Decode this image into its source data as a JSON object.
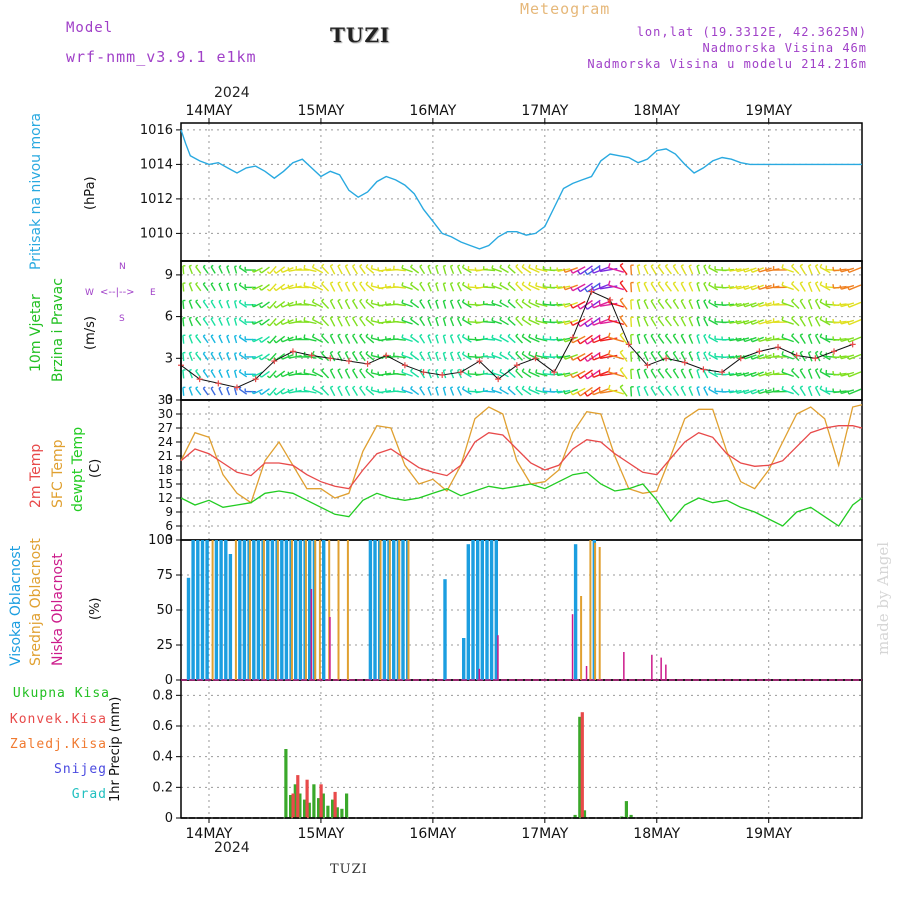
{
  "header": {
    "model_label": "Model",
    "model_name": "wrf-nmm_v3.9.1  e1km",
    "station": "TUZI",
    "title": "Meteogram",
    "lonlat": "lon,lat (19.3312E, 42.3625N)",
    "altitude": "Nadmorska Visina 46m",
    "model_altitude": "Nadmorska Visina u modelu 214.216m",
    "year_top": "2024",
    "year_bottom": "2024",
    "footer_station": "TUZI",
    "watermark": "made by Angel"
  },
  "colors": {
    "pressure": "#29a9e0",
    "wind_label": "#22c022",
    "temp2m": "#e84a4a",
    "sfc": "#e0a030",
    "dewpt": "#22cc22",
    "cloud_high": "#1b9ee0",
    "cloud_mid": "#e0a030",
    "cloud_low": "#cc1a8a",
    "precip_total": "#3aa82a",
    "precip_conv": "#e84a4a",
    "precip_frz": "#f07a30",
    "snow": "#4a4ae0",
    "graupel": "#22c0c0",
    "title": "#e6b87a",
    "purple": "#a040c8"
  },
  "days": [
    "14MAY",
    "15MAY",
    "16MAY",
    "17MAY",
    "18MAY",
    "19MAY"
  ],
  "panels": {
    "pressure": {
      "label": "Pritisak na nivou mora",
      "unit": "(hPa)",
      "ticks": [
        "1016",
        "1014",
        "1012",
        "1010"
      ]
    },
    "wind": {
      "label1": "10m Vjetar",
      "label2": "Brzina i Pravac",
      "unit": "(m/s)",
      "ticks": [
        "9",
        "6",
        "3",
        "0"
      ],
      "compass": {
        "n": "N",
        "s": "S",
        "e": "E",
        "w": "W"
      }
    },
    "temp": {
      "label_2m": "2m Temp",
      "label_sfc": "SFC Temp",
      "label_dew": "dewpt Temp",
      "unit": "(C)",
      "ticks": [
        "33",
        "30",
        "27",
        "24",
        "21",
        "18",
        "15",
        "12",
        "9",
        "6",
        "3"
      ]
    },
    "cloud": {
      "label_high": "Visoka Oblacnost",
      "label_mid": "Srednja Oblacnost",
      "label_low": "Niska Oblacnost",
      "unit": "(%)",
      "ticks": [
        "100",
        "75",
        "50",
        "25",
        "0"
      ]
    },
    "precip": {
      "unit_label": "1hr Precip (mm)",
      "ticks": [
        "0.8",
        "0.6",
        "0.4",
        "0.2",
        "0"
      ],
      "legend": [
        "Ukupna Kisa",
        "Konvek.Kisa",
        "Zaledj.Kisa",
        "Snijeg",
        "Grad"
      ]
    }
  },
  "chart_data": [
    {
      "type": "line",
      "title": "",
      "ylabel": "Pritisak na nivou mora (hPa)",
      "x_unit": "hours since 2024-05-13 18:00",
      "ylim": [
        1008.4,
        1016.4
      ],
      "x": [
        0,
        1,
        2,
        4,
        6,
        8,
        10,
        12,
        14,
        16,
        18,
        20,
        22,
        24,
        26,
        28,
        30,
        32,
        34,
        36,
        38,
        40,
        42,
        44,
        46,
        48,
        50,
        52,
        54,
        56,
        58,
        60,
        62,
        64,
        66,
        68,
        70,
        72,
        74,
        76,
        78,
        80,
        82,
        84,
        86,
        88,
        90,
        92,
        94,
        96,
        98,
        100,
        102,
        104,
        106,
        108,
        110,
        112,
        114,
        116,
        118,
        120,
        122,
        124,
        126,
        128,
        130,
        132,
        134,
        136,
        138,
        140,
        142,
        144,
        146
      ],
      "series": [
        {
          "name": "Pritisak",
          "values": [
            1016,
            1015.2,
            1014.5,
            1014.2,
            1014,
            1014.1,
            1013.8,
            1013.5,
            1013.8,
            1013.9,
            1013.6,
            1013.2,
            1013.6,
            1014.1,
            1014.3,
            1013.8,
            1013.3,
            1013.6,
            1013.4,
            1012.5,
            1012.1,
            1012.4,
            1013,
            1013.3,
            1013.1,
            1012.8,
            1012.3,
            1011.4,
            1010.7,
            1010,
            1009.8,
            1009.5,
            1009.3,
            1009.1,
            1009.3,
            1009.8,
            1010.1,
            1010.1,
            1009.9,
            1010,
            1010.4,
            1011.5,
            1012.6,
            1012.9,
            1013.1,
            1013.3,
            1014.2,
            1014.6,
            1014.5,
            1014.4,
            1014.1,
            1014.3,
            1014.8,
            1014.9,
            1014.6,
            1014,
            1013.5,
            1013.8,
            1014.2,
            1014.4,
            1014.3,
            1014.1,
            1014,
            1014,
            1014,
            1014,
            1014,
            1014,
            1014,
            1014,
            1014,
            1014,
            1014,
            1014,
            1014
          ]
        }
      ]
    },
    {
      "type": "line",
      "title": "",
      "ylabel": "10m Vjetar Brzina i Pravac (m/s)",
      "x_unit": "hours since 2024-05-13 18:00",
      "ylim": [
        0,
        10
      ],
      "x": [
        0,
        4,
        8,
        12,
        16,
        20,
        24,
        28,
        32,
        36,
        40,
        44,
        48,
        52,
        56,
        60,
        64,
        68,
        72,
        76,
        80,
        84,
        88,
        92,
        96,
        100,
        104,
        108,
        112,
        116,
        120,
        124,
        128,
        132,
        136,
        140,
        144
      ],
      "series": [
        {
          "name": "speed",
          "values": [
            2.5,
            1.5,
            1.2,
            0.9,
            1.5,
            2.8,
            3.5,
            3.2,
            3.0,
            2.8,
            2.6,
            3.2,
            2.5,
            2.0,
            1.8,
            2.0,
            2.8,
            1.5,
            2.5,
            3.0,
            2.0,
            4.5,
            7.8,
            7.2,
            4.0,
            2.5,
            3.0,
            2.7,
            2.2,
            2.0,
            3.0,
            3.5,
            3.8,
            3.2,
            3.0,
            3.5,
            4.0
          ]
        },
        {
          "name": "dir_deg",
          "values": [
            90,
            120,
            110,
            100,
            210,
            240,
            200,
            160,
            110,
            110,
            120,
            200,
            160,
            110,
            100,
            110,
            200,
            150,
            120,
            150,
            180,
            210,
            230,
            190,
            90,
            110,
            120,
            110,
            100,
            180,
            200,
            210,
            190,
            120,
            100,
            180,
            210
          ]
        }
      ]
    },
    {
      "type": "line",
      "title": "",
      "ylabel": "Temp (C)",
      "x_unit": "hours since 2024-05-13 18:00",
      "ylim": [
        3,
        33
      ],
      "x": [
        0,
        3,
        6,
        9,
        12,
        15,
        18,
        21,
        24,
        27,
        30,
        33,
        36,
        39,
        42,
        45,
        48,
        51,
        54,
        57,
        60,
        63,
        66,
        69,
        72,
        75,
        78,
        81,
        84,
        87,
        90,
        93,
        96,
        99,
        102,
        105,
        108,
        111,
        114,
        117,
        120,
        123,
        126,
        129,
        132,
        135,
        138,
        141,
        144,
        146
      ],
      "series": [
        {
          "name": "2m Temp",
          "values": [
            20,
            22.5,
            21.5,
            19.5,
            17.5,
            16.8,
            19.5,
            19.5,
            19,
            17,
            15.5,
            14.5,
            14,
            18,
            21.5,
            22.5,
            20.5,
            18.5,
            17.5,
            16.8,
            19,
            24,
            26,
            25.5,
            22.5,
            19.5,
            18,
            19,
            22.5,
            24.5,
            24,
            21.5,
            19.5,
            17.5,
            17,
            20.5,
            24,
            26,
            25,
            21.5,
            19.5,
            18.8,
            19,
            20,
            23,
            26,
            27,
            27.5,
            27.5,
            27
          ]
        },
        {
          "name": "SFC Temp",
          "values": [
            20,
            26,
            25,
            17,
            13,
            11,
            20,
            24,
            19,
            14,
            14,
            12,
            13,
            22,
            27.5,
            27,
            19,
            15,
            16,
            13.5,
            19,
            29,
            31.5,
            30,
            20,
            15,
            15.5,
            18,
            26,
            30.5,
            30,
            21,
            14,
            13,
            13.5,
            21,
            29,
            31,
            31,
            22,
            15.5,
            14,
            18,
            24,
            30,
            31.5,
            29,
            19,
            31.5,
            32
          ]
        },
        {
          "name": "dewpt Temp",
          "values": [
            12,
            10.5,
            11.5,
            10,
            10.5,
            11,
            13,
            13.5,
            13,
            11.5,
            10,
            8.5,
            8,
            11.5,
            13,
            12,
            11.5,
            12,
            13,
            14,
            12.5,
            13.5,
            14.5,
            14,
            14.5,
            15,
            14,
            15.5,
            17,
            17.5,
            15,
            13.5,
            14,
            15,
            11.5,
            7,
            10.5,
            12,
            11,
            11.5,
            10,
            9,
            7.5,
            6,
            9,
            10,
            8,
            6,
            10.5,
            12
          ]
        }
      ]
    },
    {
      "type": "bar",
      "title": "",
      "ylabel": "Oblacnost (%)",
      "ylim": [
        0,
        100
      ],
      "x_unit": "hours since 2024-05-13 18:00",
      "series": [
        {
          "name": "Visoka Oblacnost",
          "x": [
            1,
            2,
            3,
            4,
            5,
            7,
            8,
            9,
            10,
            12,
            13,
            14,
            15,
            16,
            17,
            18,
            19,
            20,
            21,
            22,
            23,
            24,
            25,
            26,
            27,
            28,
            30,
            40,
            41,
            42,
            43,
            44,
            45,
            46,
            47,
            48,
            56,
            60,
            61,
            62,
            63,
            64,
            65,
            66,
            67,
            84,
            88
          ],
          "values": [
            73,
            100,
            100,
            100,
            100,
            100,
            100,
            100,
            90,
            100,
            100,
            100,
            100,
            100,
            100,
            100,
            100,
            100,
            100,
            100,
            100,
            100,
            100,
            100,
            100,
            100,
            100,
            100,
            100,
            100,
            100,
            100,
            100,
            100,
            100,
            100,
            72,
            30,
            97,
            100,
            100,
            100,
            100,
            100,
            100,
            97,
            100
          ]
        },
        {
          "name": "Srednja Oblacnost",
          "x": [
            6,
            11,
            14,
            17,
            20,
            23,
            26,
            28,
            29,
            31,
            33,
            35,
            42,
            44,
            46,
            48,
            85,
            87,
            88,
            89
          ],
          "values": [
            100,
            100,
            100,
            100,
            100,
            100,
            100,
            100,
            100,
            100,
            100,
            100,
            100,
            100,
            100,
            100,
            60,
            100,
            98,
            95
          ]
        },
        {
          "name": "Niska Oblacnost",
          "x": [
            27,
            31,
            63,
            67,
            83,
            86,
            94,
            100,
            102,
            103
          ],
          "values": [
            65,
            45,
            8,
            32,
            47,
            10,
            20,
            18,
            16,
            11
          ]
        }
      ]
    },
    {
      "type": "bar",
      "title": "",
      "ylabel": "1hr Precip (mm)",
      "ylim": [
        0,
        0.9
      ],
      "x_unit": "hours since 2024-05-13 18:00",
      "series": [
        {
          "name": "Ukupna Kisa",
          "x": [
            22,
            23,
            24,
            25,
            26,
            27,
            28,
            29,
            30,
            31,
            32,
            33,
            34,
            35,
            36,
            84,
            85,
            86,
            94,
            95,
            96
          ],
          "values": [
            0.45,
            0.15,
            0.22,
            0.16,
            0.12,
            0.1,
            0.22,
            0.13,
            0.16,
            0.08,
            0.12,
            0.07,
            0.06,
            0.16,
            0.0,
            0.02,
            0.66,
            0.05,
            0.01,
            0.11,
            0.02
          ]
        },
        {
          "name": "Konvek.Kisa",
          "x": [
            23,
            24,
            26,
            29,
            32,
            85
          ],
          "values": [
            0.16,
            0.28,
            0.25,
            0.22,
            0.17,
            0.69
          ]
        },
        {
          "name": "Zaledj.Kisa",
          "x": [],
          "values": []
        },
        {
          "name": "Snijeg",
          "x": [],
          "values": []
        },
        {
          "name": "Grad",
          "x": [],
          "values": []
        }
      ]
    }
  ]
}
